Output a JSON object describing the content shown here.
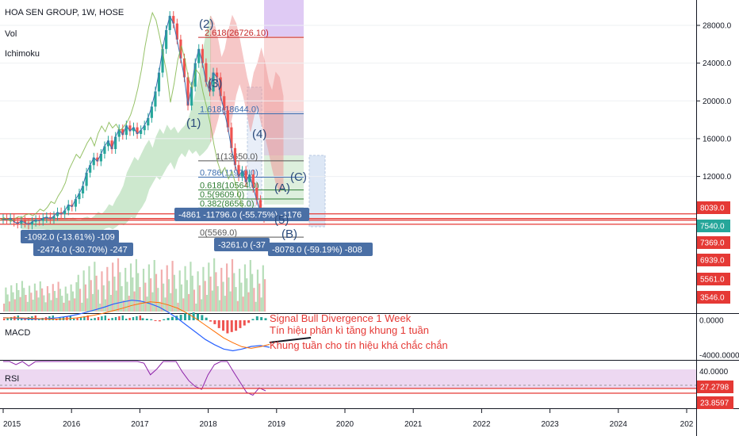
{
  "header": {
    "title": "HOA SEN GROUP, 1W, HOSE",
    "vol_label": "Vol",
    "ichimoku_label": "Ichimoku"
  },
  "macd_label": "MACD",
  "rsi_label": "RSI",
  "colors": {
    "candle_up": "#26a69a",
    "candle_down": "#ef5350",
    "fib_line": "#3e6fb0",
    "target_line": "#e53935",
    "measure_box": "#4a6fa5",
    "cloud_green": "#a5d6a7",
    "cloud_red": "#ef9a9a",
    "rsi_band": "#e1bee7"
  },
  "chart_data": {
    "type": "candlestick",
    "x_ticks": [
      "2015",
      "2016",
      "2017",
      "2018",
      "2019",
      "2020",
      "2021",
      "2022",
      "2023",
      "2024",
      "202"
    ],
    "price_axis_ticks": [
      "28000.0",
      "24000.0",
      "20000.0",
      "16000.0",
      "12000.0"
    ],
    "price_badges": [
      {
        "text": "8039.0",
        "color": "#e53935"
      },
      {
        "text": "7540.0",
        "color": "#26a69a"
      },
      {
        "text": "7369.0",
        "color": "#e53935"
      },
      {
        "text": "6939.0",
        "color": "#e53935"
      },
      {
        "text": "5561.0",
        "color": "#e53935"
      },
      {
        "text": "3546.0",
        "color": "#e53935"
      }
    ],
    "horizontal_levels": [
      8039,
      7540,
      7369,
      6939
    ],
    "fib_levels": [
      {
        "label": "2.618(26726.10)",
        "value": 26726.1,
        "color": "#c62828"
      },
      {
        "label": "1.618(18644.0)",
        "value": 18644.0,
        "color": "#3e6fb0"
      },
      {
        "label": "1(13650.0)",
        "value": 13650.0,
        "color": "#555555"
      },
      {
        "label": "0.786(11920.0)",
        "value": 11920.0,
        "color": "#3e6fb0"
      },
      {
        "label": "0.618(10564.0)",
        "value": 10564.0,
        "color": "#2e7d32"
      },
      {
        "label": "0.5(9609.0)",
        "value": 9609.0,
        "color": "#2e7d32"
      },
      {
        "label": "0.382(8656.0)",
        "value": 8656.0,
        "color": "#2e7d32"
      },
      {
        "label": "0(5569.0)",
        "value": 5569.0,
        "color": "#555555"
      }
    ],
    "wave_labels": [
      "(1)",
      "(2)",
      "(3)",
      "(4)",
      "(5)",
      "(A)",
      "(B)",
      "(C)"
    ],
    "measure_labels": [
      "-1092.0 (-13.61%) -109",
      "-2474.0 (-30.70%) -247",
      "-4861 -11796.0 (-55.75%) -1176",
      "-3261.0 (-37",
      "-8078.0 (-59.19%) -808"
    ],
    "annotations": [
      "Signal Bull Divergence 1 Week",
      "Tín hiệu phân kì tăng khung 1 tuần",
      "Khung tuần cho tín hiệu khá chắc chắn"
    ],
    "price_series": [
      7500,
      7400,
      7600,
      7200,
      7000,
      7300,
      7100,
      6900,
      7200,
      7400,
      7300,
      7600,
      7700,
      7500,
      7800,
      8200,
      8000,
      8400,
      9000,
      8800,
      9600,
      10200,
      11000,
      12400,
      13200,
      14000,
      13600,
      14400,
      15200,
      15800,
      14900,
      16200,
      17000,
      16400,
      17400,
      16800,
      17200,
      16500,
      16900,
      17400,
      18200,
      19400,
      21000,
      23000,
      25500,
      27500,
      29000,
      28200,
      26500,
      24500,
      22500,
      19500,
      21500,
      24000,
      25500,
      24000,
      22000,
      21000,
      23000,
      22500,
      20500,
      19000,
      17200,
      15000,
      13200,
      12000,
      12600,
      11400,
      12200,
      10800,
      9500,
      8200,
      7600
    ],
    "macd_axis_ticks": [
      "0.0000",
      "-4000.0000"
    ],
    "macd_line": [
      300,
      250,
      200,
      150,
      150,
      200,
      300,
      450,
      650,
      900,
      1200,
      1500,
      1850,
      2100,
      2300,
      2200,
      1900,
      1500,
      900,
      200,
      -600,
      -1400,
      -2200,
      -2800,
      -3300,
      -3500,
      -3300,
      -3000,
      -2900,
      -3100
    ],
    "macd_hist": [
      80,
      60,
      40,
      -20,
      -40,
      40,
      90,
      130,
      170,
      210,
      260,
      280,
      300,
      250,
      200,
      100,
      -50,
      -150,
      -300,
      -400,
      -500,
      -450,
      -400,
      -300,
      -200,
      -100,
      50,
      150,
      120,
      80
    ],
    "rsi_axis_ticks": [
      "40.0000"
    ],
    "rsi_badges": [
      {
        "text": "27.2798",
        "color": "#e53935"
      },
      {
        "text": "23.8597",
        "color": "#e53935"
      }
    ],
    "rsi_series": [
      52,
      48,
      45,
      50,
      44,
      47,
      58,
      62,
      66,
      72,
      69,
      74,
      77,
      72,
      64,
      60,
      65,
      68,
      72,
      70,
      60,
      52,
      46,
      38,
      42,
      50,
      56,
      48,
      40,
      34,
      30,
      28,
      38,
      45,
      52,
      48,
      40,
      33,
      26,
      24,
      29,
      27
    ]
  }
}
